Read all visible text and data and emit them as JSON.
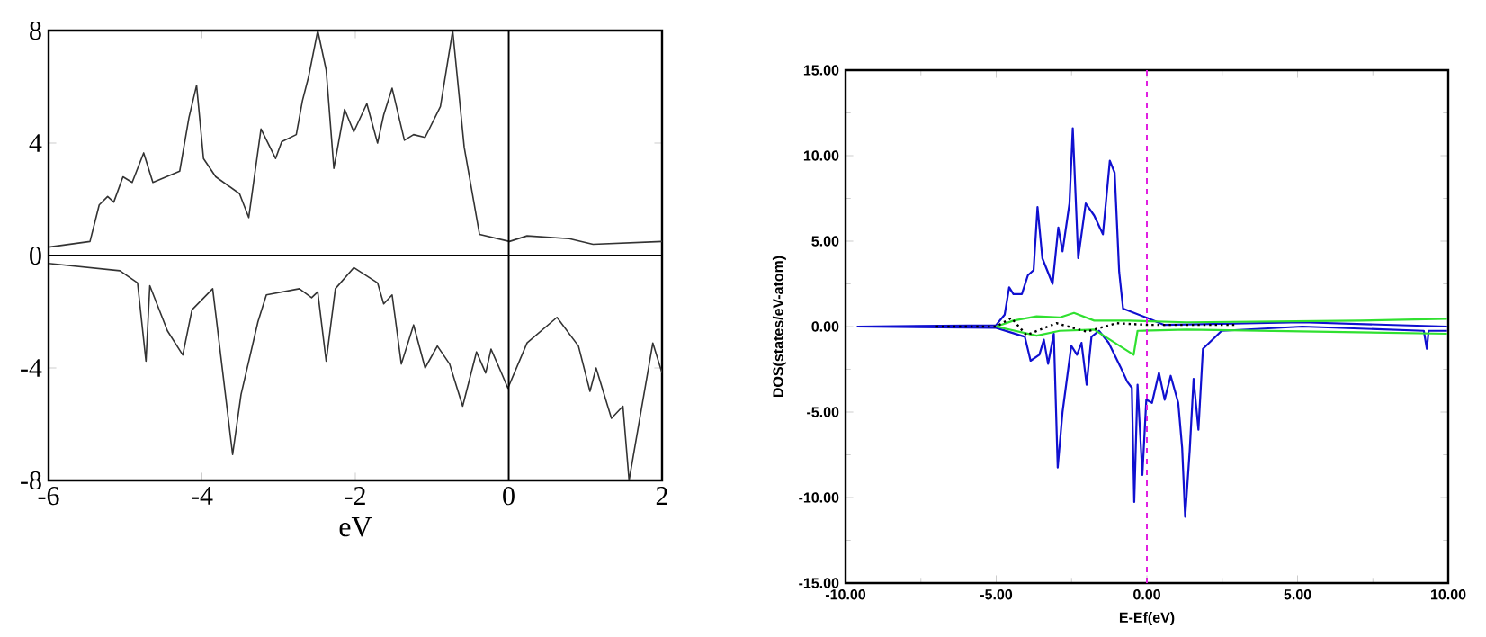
{
  "chart_data": [
    {
      "type": "line",
      "xlabel": "eV",
      "xlim": [
        -6,
        2
      ],
      "ylim": [
        -8,
        8
      ],
      "xticks": [
        -6,
        -4,
        -2,
        0,
        2
      ],
      "yticks": [
        -8,
        -4,
        0,
        4,
        8
      ],
      "grid": false,
      "ref_lines": [
        {
          "axis": "x",
          "value": 0,
          "color": "#000000"
        },
        {
          "axis": "y",
          "value": 0,
          "color": "#000000"
        }
      ],
      "series": [
        {
          "color": "#333333",
          "x": [
            -6,
            -5.46,
            -5.34,
            -5.23,
            -5.15,
            -5.03,
            -4.91,
            -4.76,
            -4.64,
            -4.29,
            -4.17,
            -4.07,
            -3.98,
            -3.82,
            -3.51,
            -3.39,
            -3.23,
            -3.04,
            -2.96,
            -2.77,
            -2.69,
            -2.61,
            -2.49,
            -2.38,
            -2.28,
            -2.14,
            -2.02,
            -1.85,
            -1.71,
            -1.63,
            -1.52,
            -1.36,
            -1.24,
            -1.09,
            -0.89,
            -0.73,
            -0.58,
            -0.38,
            0.01,
            0.24,
            0.79,
            1.1,
            2
          ],
          "values": [
            0.3,
            0.5,
            1.8,
            2.1,
            1.9,
            2.8,
            2.6,
            3.65,
            2.6,
            3.0,
            4.9,
            6.05,
            3.45,
            2.8,
            2.2,
            1.35,
            4.5,
            3.45,
            4.05,
            4.3,
            5.5,
            6.35,
            8.0,
            6.6,
            3.1,
            5.2,
            4.4,
            5.4,
            4.0,
            5.0,
            5.95,
            4.1,
            4.3,
            4.2,
            5.3,
            8.0,
            3.85,
            0.75,
            0.5,
            0.7,
            0.6,
            0.4,
            0.5
          ]
        },
        {
          "color": "#333333",
          "x": [
            -6,
            -5.07,
            -4.84,
            -4.73,
            -4.68,
            -4.45,
            -4.25,
            -4.13,
            -3.86,
            -3.6,
            -3.49,
            -3.27,
            -3.16,
            -2.73,
            -2.57,
            -2.49,
            -2.38,
            -2.26,
            -2.02,
            -1.71,
            -1.63,
            -1.52,
            -1.4,
            -1.24,
            -1.09,
            -0.93,
            -0.77,
            -0.6,
            -0.42,
            -0.3,
            -0.23,
            -0.11,
            -0.01,
            0.24,
            0.63,
            0.91,
            1.06,
            1.14,
            1.34,
            1.49,
            1.57,
            1.88,
            2
          ],
          "values": [
            -0.28,
            -0.54,
            -0.97,
            -3.76,
            -1.07,
            -2.68,
            -3.54,
            -1.93,
            -1.18,
            -7.08,
            -4.94,
            -2.36,
            -1.4,
            -1.18,
            -1.5,
            -1.29,
            -3.76,
            -1.18,
            -0.43,
            -0.97,
            -1.72,
            -1.4,
            -3.86,
            -2.47,
            -4.0,
            -3.22,
            -3.86,
            -5.36,
            -3.43,
            -4.18,
            -3.33,
            -4.08,
            -4.72,
            -3.11,
            -2.2,
            -3.22,
            -4.83,
            -4.0,
            -5.79,
            -5.36,
            -8.0,
            -3.11,
            -4.18
          ]
        }
      ]
    },
    {
      "type": "line",
      "xlabel": "E-Ef(eV)",
      "ylabel": "DOS(states/eV-atom)",
      "xlim": [
        -10,
        10
      ],
      "ylim": [
        -15,
        15
      ],
      "xticks": [
        {
          "value": -10,
          "label": "-10.00"
        },
        {
          "value": -5,
          "label": "-5.00"
        },
        {
          "value": 0,
          "label": "0.00"
        },
        {
          "value": 5,
          "label": "5.00"
        },
        {
          "value": 10,
          "label": "10.00"
        }
      ],
      "yticks": [
        {
          "value": -15,
          "label": "-15.00"
        },
        {
          "value": -10,
          "label": "-10.00"
        },
        {
          "value": -5,
          "label": "-5.00"
        },
        {
          "value": 0,
          "label": "0.00"
        },
        {
          "value": 5,
          "label": "5.00"
        },
        {
          "value": 10,
          "label": "10.00"
        },
        {
          "value": 15,
          "label": "15.00"
        }
      ],
      "grid": false,
      "ref_lines": [
        {
          "axis": "x",
          "value": 0,
          "color": "#e020e0",
          "line_style": "dashed"
        }
      ],
      "series": [
        {
          "color": "#1010d0",
          "x": [
            -9.62,
            -5.01,
            -4.72,
            -4.57,
            -4.43,
            -4.15,
            -3.95,
            -3.76,
            -3.63,
            -3.47,
            -3.13,
            -2.94,
            -2.8,
            -2.57,
            -2.46,
            -2.28,
            -2.03,
            -1.75,
            -1.46,
            -1.23,
            -1.07,
            -0.92,
            -0.79,
            0.02,
            0.56,
            5.16,
            9.96
          ],
          "values": [
            0,
            0.07,
            0.7,
            2.3,
            1.9,
            1.9,
            3.0,
            3.3,
            7.0,
            4.0,
            2.5,
            5.8,
            4.4,
            7.2,
            11.6,
            4.0,
            7.2,
            6.5,
            5.4,
            9.7,
            9.0,
            3.2,
            1.05,
            0.5,
            0.1,
            0.25,
            0
          ]
        },
        {
          "color": "#1010d0",
          "x": [
            -9.62,
            -5.01,
            -4.05,
            -3.86,
            -3.57,
            -3.42,
            -3.28,
            -3.09,
            -2.96,
            -2.8,
            -2.51,
            -2.32,
            -2.17,
            -2.0,
            -1.84,
            -1.59,
            -1.27,
            -0.88,
            -0.65,
            -0.5,
            -0.42,
            -0.31,
            -0.15,
            -0.02,
            0.17,
            0.4,
            0.59,
            0.79,
            1.04,
            1.17,
            1.27,
            1.42,
            1.55,
            1.71,
            1.86,
            2.48,
            5.16,
            9.19,
            9.29,
            9.35,
            9.96
          ],
          "values": [
            0,
            -0.07,
            -0.6,
            -2.0,
            -1.65,
            -0.77,
            -2.18,
            -0.42,
            -8.25,
            -5.0,
            -1.12,
            -1.65,
            -0.95,
            -3.4,
            -0.6,
            -0.25,
            -0.95,
            -2.35,
            -3.23,
            -3.58,
            -10.26,
            -3.4,
            -8.68,
            -4.28,
            -4.46,
            -2.7,
            -4.28,
            -2.88,
            -4.46,
            -7.1,
            -11.13,
            -7.27,
            -3.06,
            -6.04,
            -1.3,
            -0.25,
            0,
            -0.25,
            -1.3,
            -0.25,
            -0.25
          ]
        },
        {
          "color": "#30e030",
          "x": [
            -5,
            -4.43,
            -3.66,
            -2.9,
            -2.42,
            -1.75,
            -0.6,
            1.32,
            7.08,
            9.96
          ],
          "values": [
            0,
            0.35,
            0.6,
            0.53,
            0.8,
            0.35,
            0.35,
            0.25,
            0.35,
            0.45
          ]
        },
        {
          "color": "#30e030",
          "x": [
            -5,
            -3.66,
            -2.9,
            -1.75,
            -0.44,
            -0.31,
            1.32,
            9.96
          ],
          "values": [
            0,
            -0.53,
            -0.25,
            -0.18,
            -1.65,
            -0.25,
            -0.18,
            -0.42
          ]
        },
        {
          "color": "#000000",
          "line_style": "dotted",
          "x": [
            -7,
            -5,
            -4.5,
            -4,
            -3,
            -2,
            -1,
            0,
            3
          ],
          "values": [
            0,
            0,
            0.5,
            -0.5,
            0.2,
            -0.3,
            0.2,
            0.1,
            0.1
          ]
        }
      ]
    }
  ]
}
